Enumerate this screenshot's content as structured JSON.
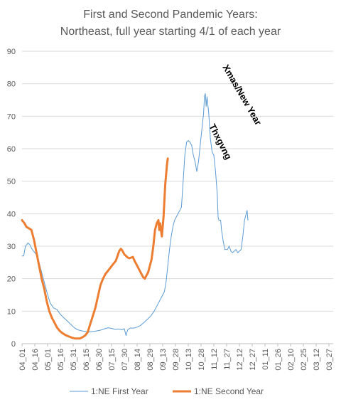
{
  "chart_data": {
    "type": "line",
    "title": [
      "First and Second Pandemic Years:",
      "Northeast, full year starting 4/1 of each year"
    ],
    "xlabel": "",
    "ylabel": "",
    "ylim": [
      0,
      90
    ],
    "yticks": [
      0,
      10,
      20,
      30,
      40,
      50,
      60,
      70,
      80,
      90
    ],
    "grid": "horizontal",
    "legend_position": "bottom",
    "x_tick_labels": [
      "04_01",
      "04_16",
      "05_01",
      "05_16",
      "05_31",
      "06_15",
      "06_30",
      "07_15",
      "07_30",
      "08_14",
      "08_29",
      "09_13",
      "09_28",
      "10_13",
      "10_28",
      "11_12",
      "11_27",
      "12_12",
      "12_27",
      "01_11",
      "01_26",
      "02_10",
      "02_25",
      "03_12",
      "03_27"
    ],
    "x_tick_spacing_days": 15,
    "x_total_days": 365,
    "series": [
      {
        "name": "1:NE First Year",
        "color": "#5b9bd5",
        "width": 1,
        "points": [
          [
            0,
            27
          ],
          [
            2,
            27
          ],
          [
            4,
            30
          ],
          [
            7,
            31
          ],
          [
            9,
            30.5
          ],
          [
            12,
            29
          ],
          [
            15,
            28
          ],
          [
            18,
            27
          ],
          [
            21,
            24
          ],
          [
            25,
            20
          ],
          [
            29,
            16
          ],
          [
            33,
            12.5
          ],
          [
            37,
            11
          ],
          [
            41,
            10.5
          ],
          [
            45,
            9
          ],
          [
            49,
            8
          ],
          [
            53,
            7
          ],
          [
            57,
            6
          ],
          [
            61,
            5
          ],
          [
            65,
            4.3
          ],
          [
            69,
            4
          ],
          [
            73,
            3.8
          ],
          [
            77,
            3.6
          ],
          [
            81,
            3.7
          ],
          [
            85,
            3.8
          ],
          [
            89,
            4
          ],
          [
            93,
            4.2
          ],
          [
            97,
            4.6
          ],
          [
            101,
            4.9
          ],
          [
            105,
            4.7
          ],
          [
            109,
            4.4
          ],
          [
            113,
            4.5
          ],
          [
            117,
            4.3
          ],
          [
            120,
            4.6
          ],
          [
            122,
            2.5
          ],
          [
            124,
            4.3
          ],
          [
            127,
            4.8
          ],
          [
            131,
            4.8
          ],
          [
            135,
            5.1
          ],
          [
            139,
            5.6
          ],
          [
            143,
            6.5
          ],
          [
            147,
            7.5
          ],
          [
            151,
            8.5
          ],
          [
            155,
            10
          ],
          [
            159,
            12
          ],
          [
            163,
            14
          ],
          [
            167,
            16
          ],
          [
            169,
            19
          ],
          [
            171,
            24
          ],
          [
            173,
            29
          ],
          [
            175,
            33
          ],
          [
            177,
            36
          ],
          [
            179,
            38
          ],
          [
            181,
            39
          ],
          [
            183,
            40
          ],
          [
            185,
            41
          ],
          [
            187,
            42
          ],
          [
            189,
            50
          ],
          [
            191,
            58
          ],
          [
            193,
            62
          ],
          [
            195,
            62.5
          ],
          [
            197,
            62
          ],
          [
            199,
            61
          ],
          [
            201,
            58
          ],
          [
            203,
            56
          ],
          [
            205,
            53
          ],
          [
            207,
            56
          ],
          [
            209,
            61
          ],
          [
            211,
            66
          ],
          [
            213,
            71
          ],
          [
            214,
            76
          ],
          [
            215,
            77
          ],
          [
            216,
            73
          ],
          [
            217,
            76
          ],
          [
            219,
            71
          ],
          [
            221,
            63
          ],
          [
            223,
            59
          ],
          [
            225,
            58
          ],
          [
            227,
            53
          ],
          [
            229,
            46
          ],
          [
            230,
            39
          ],
          [
            231,
            38
          ],
          [
            233,
            38
          ],
          [
            234,
            35
          ],
          [
            236,
            31.5
          ],
          [
            238,
            29
          ],
          [
            241,
            29
          ],
          [
            243,
            30
          ],
          [
            245,
            28.5
          ],
          [
            247,
            28
          ],
          [
            249,
            28.5
          ],
          [
            251,
            29
          ],
          [
            253,
            28
          ],
          [
            255,
            28.5
          ],
          [
            257,
            29
          ],
          [
            259,
            33
          ],
          [
            261,
            38
          ],
          [
            263,
            40
          ],
          [
            264,
            41
          ],
          [
            265,
            38
          ]
        ]
      },
      {
        "name": "1:NE Second Year",
        "color": "#ed7d31",
        "width": 3,
        "points": [
          [
            0,
            38
          ],
          [
            3,
            37
          ],
          [
            5,
            36
          ],
          [
            8,
            35.5
          ],
          [
            11,
            35
          ],
          [
            14,
            32
          ],
          [
            17,
            28
          ],
          [
            20,
            24
          ],
          [
            23,
            20
          ],
          [
            26,
            17
          ],
          [
            29,
            13
          ],
          [
            32,
            10
          ],
          [
            35,
            8
          ],
          [
            38,
            6.5
          ],
          [
            41,
            5
          ],
          [
            44,
            4
          ],
          [
            47,
            3.3
          ],
          [
            50,
            2.8
          ],
          [
            53,
            2.4
          ],
          [
            56,
            2.1
          ],
          [
            59,
            1.8
          ],
          [
            62,
            1.6
          ],
          [
            65,
            1.6
          ],
          [
            68,
            1.6
          ],
          [
            71,
            2
          ],
          [
            74,
            2.5
          ],
          [
            77,
            3.5
          ],
          [
            80,
            6
          ],
          [
            83,
            8.5
          ],
          [
            86,
            11
          ],
          [
            89,
            14.5
          ],
          [
            92,
            18
          ],
          [
            95,
            20
          ],
          [
            98,
            21.5
          ],
          [
            101,
            22.5
          ],
          [
            104,
            23.5
          ],
          [
            107,
            24.5
          ],
          [
            110,
            25.5
          ],
          [
            112,
            27
          ],
          [
            114,
            28.5
          ],
          [
            116,
            29.2
          ],
          [
            118,
            28.5
          ],
          [
            120,
            27.5
          ],
          [
            122,
            27
          ],
          [
            124,
            26.5
          ],
          [
            126,
            26.3
          ],
          [
            128,
            26.5
          ],
          [
            130,
            26.7
          ],
          [
            132,
            25.5
          ],
          [
            134,
            24.5
          ],
          [
            136,
            23.5
          ],
          [
            138,
            22.5
          ],
          [
            140,
            21.5
          ],
          [
            142,
            20.5
          ],
          [
            144,
            20
          ],
          [
            146,
            21
          ],
          [
            148,
            22
          ],
          [
            150,
            24
          ],
          [
            152,
            26
          ],
          [
            154,
            30
          ],
          [
            156,
            35
          ],
          [
            158,
            37
          ],
          [
            160,
            38
          ],
          [
            161,
            35
          ],
          [
            162,
            37
          ],
          [
            164,
            33
          ],
          [
            166,
            39
          ],
          [
            168,
            49
          ],
          [
            170,
            55
          ],
          [
            171,
            57
          ]
        ]
      }
    ],
    "annotations": [
      "Xmas/New Year",
      "Thxgvng"
    ]
  }
}
